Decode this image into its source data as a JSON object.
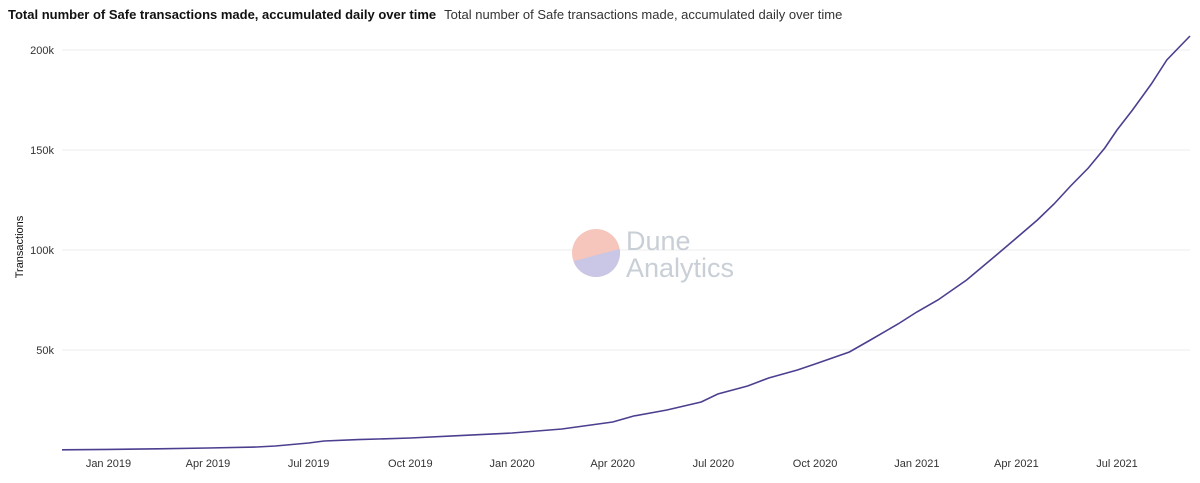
{
  "header": {
    "title": "Total number of Safe transactions made, accumulated daily over time",
    "subtitle": "Total number of Safe transactions made, accumulated daily over time"
  },
  "watermark": {
    "line1": "Dune",
    "line2": "Analytics"
  },
  "colors": {
    "line": "#4b3f8f",
    "grid": "#ececec",
    "watermark_circle_top": "#f6c6bc",
    "watermark_circle_bottom": "#c9c6e6"
  },
  "chart_data": {
    "type": "line",
    "title": "Total number of Safe transactions made, accumulated daily over time",
    "xlabel": "",
    "ylabel": "Transactions",
    "ylim": [
      0,
      210000
    ],
    "xlim": [
      "2018-11-20",
      "2021-09-05"
    ],
    "yticks": [
      50000,
      100000,
      150000,
      200000
    ],
    "ytick_labels": [
      "50k",
      "100k",
      "150k",
      "200k"
    ],
    "xticks": [
      "2019-01-01",
      "2019-04-01",
      "2019-07-01",
      "2019-10-01",
      "2020-01-01",
      "2020-04-01",
      "2020-07-01",
      "2020-10-01",
      "2021-01-01",
      "2021-04-01",
      "2021-07-01"
    ],
    "xtick_labels": [
      "Jan 2019",
      "Apr 2019",
      "Jul 2019",
      "Oct 2019",
      "Jan 2020",
      "Apr 2020",
      "Jul 2020",
      "Oct 2020",
      "Jan 2021",
      "Apr 2021",
      "Jul 2021"
    ],
    "grid": true,
    "series": [
      {
        "x": [
          "2018-11-20",
          "2019-01-01",
          "2019-02-15",
          "2019-04-01",
          "2019-05-15",
          "2019-06-01",
          "2019-07-01",
          "2019-07-15",
          "2019-08-15",
          "2019-10-01",
          "2019-11-15",
          "2020-01-01",
          "2020-02-15",
          "2020-04-01",
          "2020-04-20",
          "2020-05-20",
          "2020-06-20",
          "2020-07-05",
          "2020-08-01",
          "2020-08-20",
          "2020-09-15",
          "2020-10-01",
          "2020-11-01",
          "2020-11-20",
          "2020-12-15",
          "2021-01-01",
          "2021-01-20",
          "2021-02-15",
          "2021-03-15",
          "2021-04-01",
          "2021-04-20",
          "2021-05-05",
          "2021-05-20",
          "2021-06-05",
          "2021-06-20",
          "2021-07-01",
          "2021-07-15",
          "2021-08-01",
          "2021-08-15",
          "2021-09-05"
        ],
        "y": [
          100,
          300,
          600,
          1000,
          1500,
          2000,
          3500,
          4500,
          5200,
          6000,
          7200,
          8500,
          10500,
          14000,
          17000,
          20000,
          24000,
          28000,
          32000,
          36000,
          40000,
          43000,
          49000,
          55000,
          63000,
          69000,
          75000,
          85000,
          98000,
          106000,
          115000,
          123000,
          132000,
          141000,
          151000,
          160000,
          170000,
          183000,
          195000,
          207000
        ]
      }
    ]
  }
}
